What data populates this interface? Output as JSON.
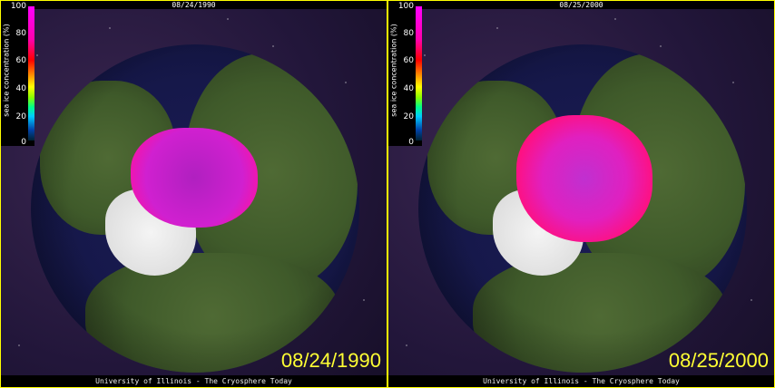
{
  "colorbar": {
    "label": "sea ice concentration (%)",
    "ticks": [
      "100",
      "80",
      "60",
      "40",
      "20",
      "0"
    ]
  },
  "panels": [
    {
      "header": "08/24/1990",
      "date": "08/24/1990",
      "footer": "University of Illinois - The Cryosphere Today"
    },
    {
      "header": "08/25/2000",
      "date": "08/25/2000",
      "footer": "University of Illinois - The Cryosphere Today"
    }
  ],
  "colors": {
    "border": "#ffff00",
    "date_text": "#ffff33",
    "ice_high": "#ff00ff",
    "ice_mid": "#ff0000"
  }
}
